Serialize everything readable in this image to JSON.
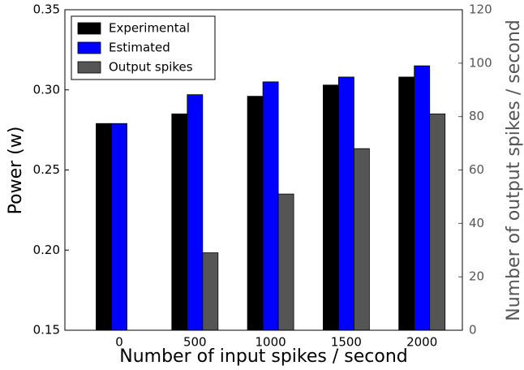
{
  "chart_data": {
    "type": "bar",
    "xlabel": "Number of input spikes / second",
    "ylabel": "Power (w)",
    "y2label": "Number of output spikes / second",
    "categories": [
      "0",
      "500",
      "1000",
      "1500",
      "2000"
    ],
    "series": [
      {
        "name": "Experimental",
        "color": "#000000",
        "values": [
          0.279,
          0.285,
          0.296,
          0.303,
          0.308
        ]
      },
      {
        "name": "Estimated",
        "color": "#0000ff",
        "values": [
          0.279,
          0.297,
          0.305,
          0.308,
          0.315
        ]
      },
      {
        "name": "Output spikes",
        "color": "#555555",
        "axis": "y2",
        "values": [
          0,
          29,
          51,
          68,
          81
        ]
      }
    ],
    "ylim": [
      0.15,
      0.35
    ],
    "yticks": [
      {
        "value": 0.15,
        "label": "0.15"
      },
      {
        "value": 0.2,
        "label": "0.20"
      },
      {
        "value": 0.25,
        "label": "0.25"
      },
      {
        "value": 0.3,
        "label": "0.30"
      },
      {
        "value": 0.35,
        "label": "0.35"
      }
    ],
    "y2lim": [
      0,
      120
    ],
    "y2ticks": [
      0,
      20,
      40,
      60,
      80,
      100,
      120
    ],
    "y2color": "#555555",
    "legend": "upper left"
  }
}
